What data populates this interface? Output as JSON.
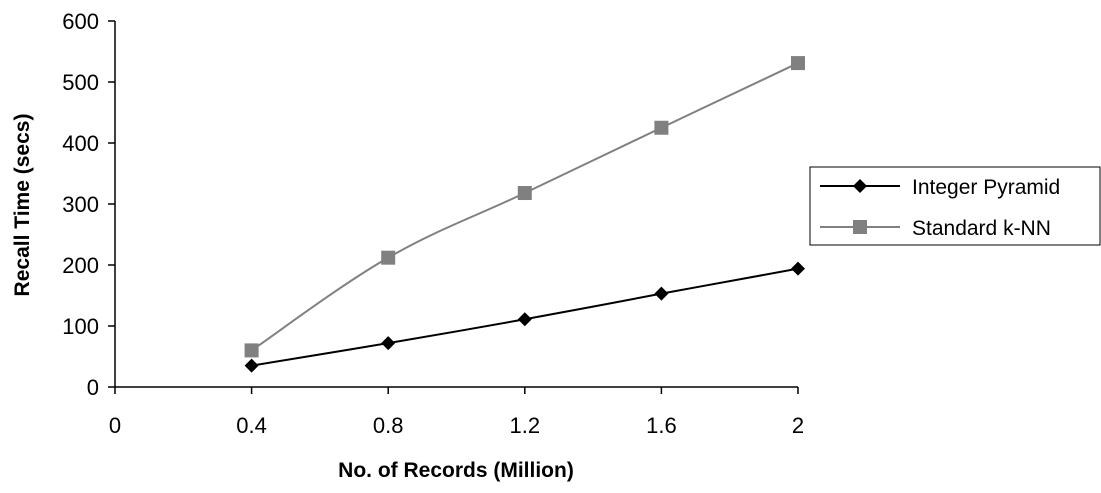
{
  "chart_data": {
    "type": "line",
    "title": "",
    "xlabel": "No. of Records (Million)",
    "ylabel": "Recall Time (secs)",
    "xlim": [
      0,
      2
    ],
    "ylim": [
      0,
      600
    ],
    "x_ticks": [
      0,
      0.4,
      0.8,
      1.2,
      1.6,
      2
    ],
    "x_tick_labels": [
      "0",
      "0.4",
      "0.8",
      "1.2",
      "1.6",
      "2"
    ],
    "y_ticks": [
      0,
      100,
      200,
      300,
      400,
      500,
      600
    ],
    "y_tick_labels": [
      "0",
      "100",
      "200",
      "300",
      "400",
      "500",
      "600"
    ],
    "grid": false,
    "legend_position": "right",
    "series": [
      {
        "name": "Integer Pyramid",
        "color": "#000000",
        "marker": "diamond",
        "x": [
          0.4,
          0.8,
          1.2,
          1.6,
          2
        ],
        "values": [
          35,
          72,
          111,
          153,
          194
        ]
      },
      {
        "name": "Standard k-NN",
        "color": "#808080",
        "marker": "square",
        "x": [
          0.4,
          0.8,
          1.2,
          1.6,
          2
        ],
        "values": [
          60,
          212,
          318,
          425,
          531
        ]
      }
    ]
  }
}
